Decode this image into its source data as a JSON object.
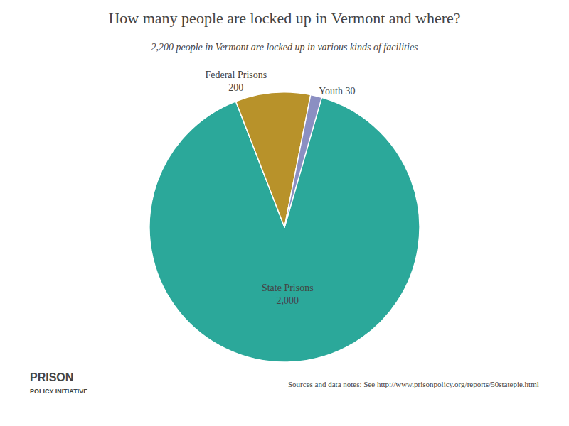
{
  "chart_data": {
    "type": "pie",
    "title": "How many people are locked up in Vermont and where?",
    "subtitle": "2,200 people in Vermont are locked up in various kinds of facilities",
    "categories": [
      "State Prisons",
      "Federal Prisons",
      "Youth"
    ],
    "values": [
      2000,
      200,
      30
    ],
    "value_labels": [
      "State Prisons\n2,000",
      "Federal Prisons\n200",
      "Youth 30"
    ],
    "colors": [
      "#2ba89a",
      "#b8922a",
      "#8b8fc2"
    ],
    "data_labels": true,
    "legend": false,
    "annotations": [
      "Sources and data notes: See http://www.prisonpolicy.org/reports/50statepie.html",
      "PRISON",
      "POLICY INITIATIVE"
    ]
  }
}
